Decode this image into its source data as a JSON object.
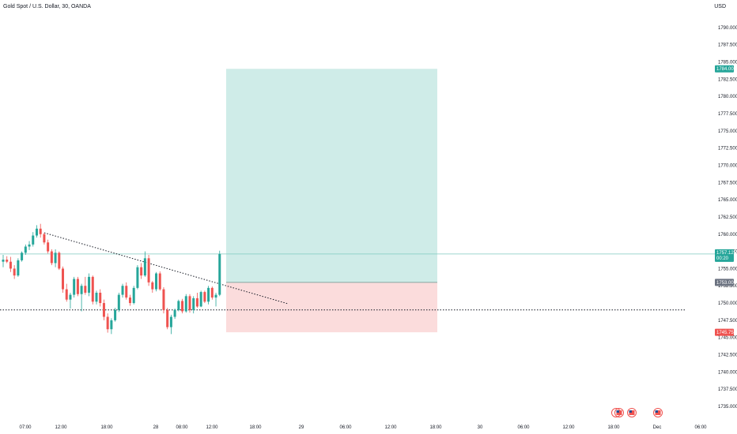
{
  "header": {
    "symbol_title": "Gold Spot / U.S. Dollar, 30, OANDA",
    "currency": "USD"
  },
  "chart_data": {
    "type": "candlestick",
    "y_axis": {
      "ylim": [
        1733.5,
        1792.5
      ],
      "ticks": [
        1735,
        1737.5,
        1740,
        1742.5,
        1745,
        1747.5,
        1750,
        1752.5,
        1755,
        1757.5,
        1760,
        1762.5,
        1765,
        1767.5,
        1770,
        1772.5,
        1775,
        1777.5,
        1780,
        1782.5,
        1785,
        1787.5,
        1790
      ],
      "tick_labels": [
        "1735.000",
        "1737.500",
        "1740.000",
        "1742.500",
        "1745.000",
        "1747.500",
        "1750.000",
        "1752.500",
        "1755.000",
        "1757.500",
        "1760.000",
        "1762.500",
        "1765.000",
        "1767.500",
        "1770.000",
        "1772.500",
        "1775.000",
        "1777.500",
        "1780.000",
        "1782.500",
        "1785.000",
        "1787.500",
        "1790.000"
      ]
    },
    "x_axis": {
      "tick_labels": [
        "07:00",
        "12:00",
        "18:00",
        "28",
        "08:00",
        "12:00",
        "18:00",
        "29",
        "06:00",
        "12:00",
        "18:00",
        "30",
        "06:00",
        "12:00",
        "18:00",
        "Dec",
        "06:00"
      ]
    },
    "price_labels": {
      "target": "1784.000",
      "last_price": "1757.125",
      "countdown": "00:20",
      "entry": "1753.000",
      "stop": "1745.757"
    },
    "levels": {
      "target": 1784.0,
      "last": 1757.125,
      "entry": 1753.0,
      "stop": 1745.757,
      "support": 1749.0
    },
    "candles": [
      [
        1756,
        1757,
        1755.2,
        1756.3
      ],
      [
        1756.3,
        1756.8,
        1755.8,
        1756
      ],
      [
        1756,
        1756.7,
        1754.5,
        1755
      ],
      [
        1755,
        1755.5,
        1753.5,
        1754
      ],
      [
        1754,
        1756.5,
        1753.8,
        1756.2
      ],
      [
        1756.2,
        1757.5,
        1756,
        1757.3
      ],
      [
        1757.3,
        1758.5,
        1757,
        1758.2
      ],
      [
        1758.2,
        1759,
        1757.7,
        1758.5
      ],
      [
        1758.5,
        1760.3,
        1758.2,
        1759.8
      ],
      [
        1759.8,
        1761.3,
        1759.5,
        1760.8
      ],
      [
        1760.8,
        1761.5,
        1759.5,
        1760
      ],
      [
        1760,
        1760.2,
        1758.5,
        1758.8
      ],
      [
        1758.8,
        1759.2,
        1757.2,
        1757.5
      ],
      [
        1757.5,
        1757.8,
        1755.5,
        1755.8
      ],
      [
        1755.8,
        1757.8,
        1755.2,
        1757.3
      ],
      [
        1757.3,
        1757.5,
        1754.8,
        1755
      ],
      [
        1755,
        1755.3,
        1751.5,
        1752
      ],
      [
        1752,
        1752.8,
        1750.2,
        1750.5
      ],
      [
        1750.5,
        1751.5,
        1749.2,
        1751.2
      ],
      [
        1751.2,
        1753.8,
        1750.8,
        1753.5
      ],
      [
        1753.5,
        1753.8,
        1751,
        1751.3
      ],
      [
        1751.3,
        1752.8,
        1748.8,
        1752.5
      ],
      [
        1752.5,
        1753.8,
        1751.2,
        1751.5
      ],
      [
        1751.5,
        1754.3,
        1751,
        1753.8
      ],
      [
        1753.8,
        1754,
        1749.8,
        1750.2
      ],
      [
        1750.2,
        1751.8,
        1749.8,
        1751.5
      ],
      [
        1751.5,
        1752,
        1749.5,
        1750
      ],
      [
        1750,
        1750.5,
        1747.5,
        1748
      ],
      [
        1748,
        1748.5,
        1745.7,
        1746.2
      ],
      [
        1746.2,
        1747.8,
        1745.5,
        1747.5
      ],
      [
        1747.5,
        1749.3,
        1747.3,
        1749
      ],
      [
        1749,
        1751.5,
        1748.7,
        1751.2
      ],
      [
        1751.2,
        1752.8,
        1750.8,
        1752.5
      ],
      [
        1752.5,
        1753,
        1750.5,
        1750.8
      ],
      [
        1750.8,
        1751.2,
        1749.6,
        1750
      ],
      [
        1750,
        1752.5,
        1749.8,
        1752.2
      ],
      [
        1752.2,
        1755.5,
        1752,
        1755.2
      ],
      [
        1755.2,
        1755.8,
        1753.5,
        1754
      ],
      [
        1754,
        1757.5,
        1753.8,
        1756.5
      ],
      [
        1756.5,
        1757,
        1752.5,
        1753
      ],
      [
        1753,
        1753.2,
        1751.5,
        1752
      ],
      [
        1752,
        1754.5,
        1751.7,
        1754.3
      ],
      [
        1754.3,
        1754.6,
        1751.8,
        1752
      ],
      [
        1752,
        1752.3,
        1748.5,
        1749
      ],
      [
        1749,
        1749.3,
        1746.2,
        1746.5
      ],
      [
        1746.5,
        1748.3,
        1745.5,
        1748
      ],
      [
        1748,
        1749.2,
        1747.7,
        1749
      ],
      [
        1749,
        1750.5,
        1748.8,
        1750.3
      ],
      [
        1750.3,
        1750.6,
        1748.5,
        1748.8
      ],
      [
        1748.8,
        1751.3,
        1748.6,
        1751
      ],
      [
        1751,
        1751.3,
        1748.6,
        1749
      ],
      [
        1749,
        1751,
        1748.5,
        1750.7
      ],
      [
        1750.7,
        1751.5,
        1749.3,
        1749.5
      ],
      [
        1749.5,
        1751.8,
        1749.4,
        1751.6
      ],
      [
        1751.6,
        1751.8,
        1750,
        1750.2
      ],
      [
        1750.2,
        1752.5,
        1749.8,
        1752.2
      ],
      [
        1752.2,
        1752.4,
        1750.5,
        1750.8
      ],
      [
        1750.8,
        1751.5,
        1749.5,
        1751.2
      ],
      [
        1751.2,
        1757.6,
        1751,
        1757.125
      ]
    ]
  },
  "colors": {
    "up": "#26a69a",
    "down": "#ef5350",
    "target_fill": "#cfece8",
    "stop_fill": "#fbdcdc",
    "entry_badge": "#6b7280",
    "stop_badge": "#ef5350",
    "grid": "#ffffff",
    "text": "#131722"
  }
}
